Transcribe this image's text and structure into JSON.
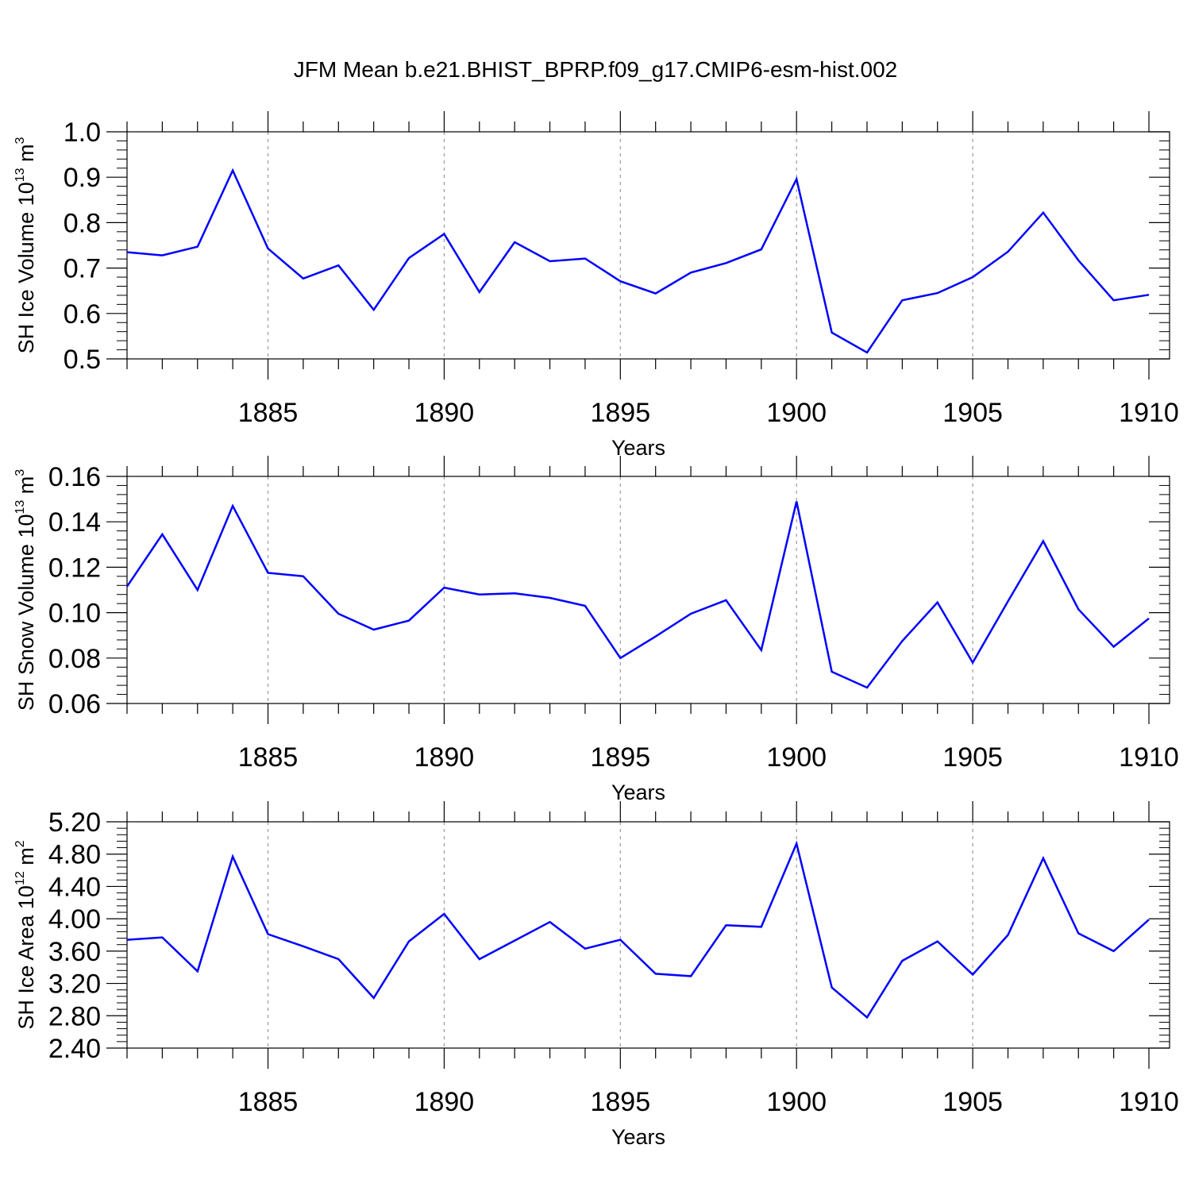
{
  "title": "JFM Mean b.e21.BHIST_BPRP.f09_g17.CMIP6-esm-hist.002",
  "line_color": "#0000ff",
  "grid_color": "#9a9a9a",
  "chart_data": [
    {
      "type": "line",
      "xlabel": "Years",
      "ylabel_parts": [
        "SH Ice Volume 10",
        "13",
        " m",
        "3"
      ],
      "ylim": [
        0.5,
        1.0
      ],
      "xlim": [
        1881,
        1910
      ],
      "yticks": [
        0.5,
        0.6,
        0.7,
        0.8,
        0.9,
        1.0
      ],
      "ytick_labels": [
        "0.5",
        "0.6",
        "0.7",
        "0.8",
        "0.9",
        "1.0"
      ],
      "xticks": [
        1885,
        1890,
        1895,
        1900,
        1905,
        1910
      ],
      "xtick_labels": [
        "1885",
        "1890",
        "1895",
        "1900",
        "1905",
        "1910"
      ],
      "grid": "vertical dashed at labeled years",
      "x": [
        1881,
        1882,
        1883,
        1884,
        1885,
        1886,
        1887,
        1888,
        1889,
        1890,
        1891,
        1892,
        1893,
        1894,
        1895,
        1896,
        1897,
        1898,
        1899,
        1900,
        1901,
        1902,
        1903,
        1904,
        1905,
        1906,
        1907,
        1908,
        1909,
        1910
      ],
      "values": [
        0.735,
        0.728,
        0.747,
        0.915,
        0.743,
        0.677,
        0.706,
        0.608,
        0.722,
        0.775,
        0.647,
        0.757,
        0.715,
        0.721,
        0.671,
        0.644,
        0.69,
        0.711,
        0.741,
        0.896,
        0.558,
        0.514,
        0.629,
        0.645,
        0.68,
        0.736,
        0.822,
        0.717,
        0.629,
        0.641
      ]
    },
    {
      "type": "line",
      "xlabel": "Years",
      "ylabel_parts": [
        "SH Snow Volume 10",
        "13",
        " m",
        "3"
      ],
      "ylim": [
        0.06,
        0.16
      ],
      "xlim": [
        1881,
        1910
      ],
      "yticks": [
        0.06,
        0.08,
        0.1,
        0.12,
        0.14,
        0.16
      ],
      "ytick_labels": [
        "0.06",
        "0.08",
        "0.10",
        "0.12",
        "0.14",
        "0.16"
      ],
      "xticks": [
        1885,
        1890,
        1895,
        1900,
        1905,
        1910
      ],
      "xtick_labels": [
        "1885",
        "1890",
        "1895",
        "1900",
        "1905",
        "1910"
      ],
      "grid": "vertical dashed at labeled years",
      "x": [
        1881,
        1882,
        1883,
        1884,
        1885,
        1886,
        1887,
        1888,
        1889,
        1890,
        1891,
        1892,
        1893,
        1894,
        1895,
        1896,
        1897,
        1898,
        1899,
        1900,
        1901,
        1902,
        1903,
        1904,
        1905,
        1906,
        1907,
        1908,
        1909,
        1910
      ],
      "values": [
        0.1115,
        0.1345,
        0.11,
        0.147,
        0.1175,
        0.116,
        0.0995,
        0.0925,
        0.0965,
        0.111,
        0.108,
        0.1085,
        0.1065,
        0.103,
        0.08,
        0.0895,
        0.0995,
        0.1055,
        0.0835,
        0.149,
        0.074,
        0.067,
        0.0875,
        0.1045,
        0.078,
        0.105,
        0.1315,
        0.1015,
        0.085,
        0.0975
      ]
    },
    {
      "type": "line",
      "xlabel": "Years",
      "ylabel_parts": [
        "SH Ice Area 10",
        "12",
        " m",
        "2"
      ],
      "ylim": [
        2.4,
        5.2
      ],
      "xlim": [
        1881,
        1910
      ],
      "yticks": [
        2.4,
        2.8,
        3.2,
        3.6,
        4.0,
        4.4,
        4.8,
        5.2
      ],
      "ytick_labels": [
        "2.40",
        "2.80",
        "3.20",
        "3.60",
        "4.00",
        "4.40",
        "4.80",
        "5.20"
      ],
      "xticks": [
        1885,
        1890,
        1895,
        1900,
        1905,
        1910
      ],
      "xtick_labels": [
        "1885",
        "1890",
        "1895",
        "1900",
        "1905",
        "1910"
      ],
      "grid": "vertical dashed at labeled years",
      "x": [
        1881,
        1882,
        1883,
        1884,
        1885,
        1886,
        1887,
        1888,
        1889,
        1890,
        1891,
        1892,
        1893,
        1894,
        1895,
        1896,
        1897,
        1898,
        1899,
        1900,
        1901,
        1902,
        1903,
        1904,
        1905,
        1906,
        1907,
        1908,
        1909,
        1910
      ],
      "values": [
        3.74,
        3.77,
        3.35,
        4.77,
        3.81,
        3.66,
        3.5,
        3.02,
        3.72,
        4.06,
        3.5,
        3.73,
        3.96,
        3.63,
        3.74,
        3.32,
        3.29,
        3.92,
        3.9,
        4.93,
        3.15,
        2.78,
        3.48,
        3.72,
        3.31,
        3.8,
        4.75,
        3.82,
        3.6,
        3.99
      ]
    }
  ]
}
